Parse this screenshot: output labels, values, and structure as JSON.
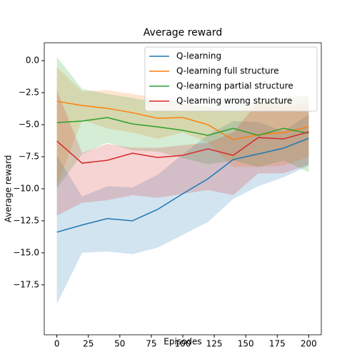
{
  "chart_data": {
    "type": "line",
    "title": "Average reward",
    "xlabel": "Episodes",
    "ylabel": "Average reward",
    "x": [
      0,
      20,
      40,
      60,
      80,
      100,
      120,
      140,
      160,
      180,
      200
    ],
    "xlim": [
      -10,
      210
    ],
    "xticks": [
      0,
      25,
      50,
      75,
      100,
      125,
      150,
      175,
      200
    ],
    "ylim": [
      -21.4,
      1.4
    ],
    "yticks": [
      {
        "value": 0,
        "label": "0.0"
      },
      {
        "value": -2.5,
        "label": "−2.5"
      },
      {
        "value": -5,
        "label": "−5.0"
      },
      {
        "value": -7.5,
        "label": "−7.5"
      },
      {
        "value": -10,
        "label": "−10.0"
      },
      {
        "value": -12.5,
        "label": "−12.5"
      },
      {
        "value": -15,
        "label": "−15.0"
      },
      {
        "value": -17.5,
        "label": "−17.5"
      }
    ],
    "legend": "upper right",
    "series": [
      {
        "name": "Q-learning",
        "color": "#1f77b4",
        "values": [
          -13.39,
          -12.83,
          -12.33,
          -12.5,
          -11.61,
          -10.39,
          -9.22,
          -7.72,
          -7.28,
          -6.83,
          -6.06
        ],
        "upper": [
          -7.4,
          -10.6,
          -9.8,
          -9.9,
          -8.9,
          -7.3,
          -5.8,
          -4.7,
          -4.8,
          -5.5,
          -4.2
        ],
        "lower": [
          -19,
          -15,
          -14.9,
          -15.1,
          -14.6,
          -13.6,
          -12.6,
          -10.8,
          -9.8,
          -9.1,
          -8.2
        ]
      },
      {
        "name": "Q-learning full structure",
        "color": "#ff7f0e",
        "values": [
          -3.17,
          -3.5,
          -3.72,
          -4.06,
          -4.5,
          -4.44,
          -5,
          -6.17,
          -5.78,
          -5.61,
          -5.17
        ],
        "upper": [
          -0.5,
          -2.4,
          -2.3,
          -2.6,
          -2.9,
          -3.3,
          -3.6,
          -4.0,
          -3.2,
          -3.0,
          -2.8
        ],
        "lower": [
          -9.8,
          -4.6,
          -5.3,
          -5.6,
          -6.1,
          -5.6,
          -6.4,
          -8.3,
          -8.3,
          -8.2,
          -7.5
        ]
      },
      {
        "name": "Q-learning partial structure",
        "color": "#2ca02c",
        "values": [
          -4.83,
          -4.72,
          -4.44,
          -4.94,
          -5.17,
          -5.44,
          -5.83,
          -5.28,
          -5.83,
          -5.28,
          -5.67
        ],
        "upper": [
          0.3,
          -2.2,
          -2.6,
          -2.9,
          -3.3,
          -3.3,
          -3.6,
          -2.8,
          -3.4,
          -2.8,
          -2.7
        ],
        "lower": [
          -10,
          -7.3,
          -6.4,
          -7.0,
          -7.1,
          -7.6,
          -8.1,
          -7.8,
          -8.3,
          -7.8,
          -8.7
        ]
      },
      {
        "name": "Q-learning wrong structure",
        "color": "#d62728",
        "values": [
          -6.28,
          -8,
          -7.78,
          -7.22,
          -7.56,
          -7.39,
          -6.89,
          -7.39,
          -6.0,
          -6.11,
          -5.56
        ],
        "upper": [
          -2.3,
          -7.2,
          -6.5,
          -6.8,
          -6.8,
          -6.6,
          -6.4,
          -5.6,
          -3.2,
          -3.6,
          -3.3
        ],
        "lower": [
          -12.1,
          -11.1,
          -10.9,
          -10.5,
          -10.7,
          -10.4,
          -10.1,
          -10.5,
          -8.8,
          -8.8,
          -8.1
        ]
      }
    ]
  }
}
